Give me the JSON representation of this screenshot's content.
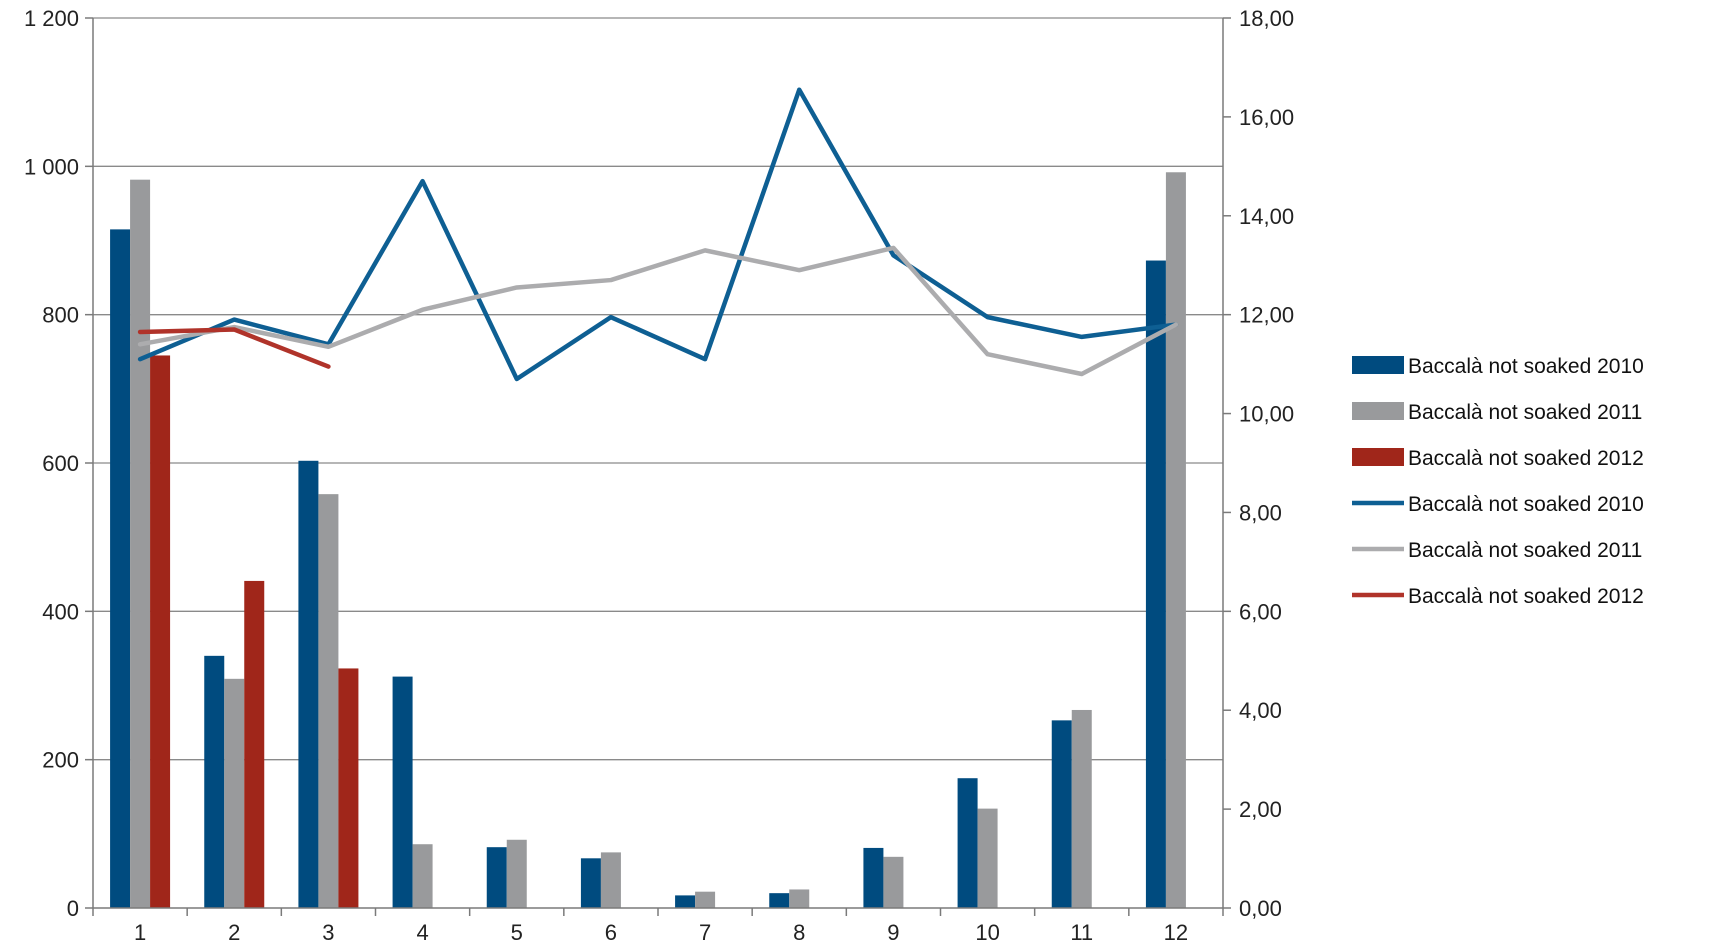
{
  "chart_data": {
    "type": "bar",
    "categories": [
      "1",
      "2",
      "3",
      "4",
      "5",
      "6",
      "7",
      "8",
      "9",
      "10",
      "11",
      "12"
    ],
    "y_left": {
      "min": 0,
      "max": 1200,
      "ticks": [
        0,
        200,
        400,
        600,
        800,
        1000,
        1200
      ],
      "tick_labels": [
        "0",
        "200",
        "400",
        "600",
        "800",
        "1 000",
        "1 200"
      ]
    },
    "y_right": {
      "min": 0,
      "max": 18,
      "ticks": [
        0,
        2,
        4,
        6,
        8,
        10,
        12,
        14,
        16,
        18
      ],
      "tick_labels": [
        "0,00",
        "2,00",
        "4,00",
        "6,00",
        "8,00",
        "10,00",
        "12,00",
        "14,00",
        "16,00",
        "18,00"
      ]
    },
    "grid": "horizontal",
    "legend_position": "right",
    "bar_series": [
      {
        "name": "Baccalà not soaked 2010",
        "color": "#004b7f",
        "values": [
          915,
          340,
          603,
          312,
          82,
          67,
          17,
          20,
          81,
          175,
          253,
          873
        ]
      },
      {
        "name": "Baccalà not soaked 2011",
        "color": "#999a9c",
        "values": [
          982,
          309,
          558,
          86,
          92,
          75,
          22,
          25,
          69,
          134,
          267,
          992
        ]
      },
      {
        "name": "Baccalà not soaked 2012",
        "color": "#a0261a",
        "values": [
          745,
          441,
          323,
          null,
          null,
          null,
          null,
          null,
          null,
          null,
          null,
          null
        ]
      }
    ],
    "line_series": [
      {
        "name": "Baccalà not soaked 2010",
        "color": "#0e5f93",
        "values": [
          11.1,
          11.9,
          11.4,
          14.7,
          10.7,
          11.95,
          11.1,
          16.55,
          13.2,
          11.95,
          11.55,
          11.8
        ]
      },
      {
        "name": "Baccalà not soaked 2011",
        "color": "#acacae",
        "values": [
          11.4,
          11.75,
          11.35,
          12.1,
          12.55,
          12.7,
          13.3,
          12.9,
          13.35,
          11.2,
          10.8,
          11.8
        ]
      },
      {
        "name": "Baccalà not soaked 2012",
        "color": "#b0332a",
        "values": [
          11.65,
          11.7,
          10.95,
          null,
          null,
          null,
          null,
          null,
          null,
          null,
          null,
          null
        ]
      }
    ]
  }
}
